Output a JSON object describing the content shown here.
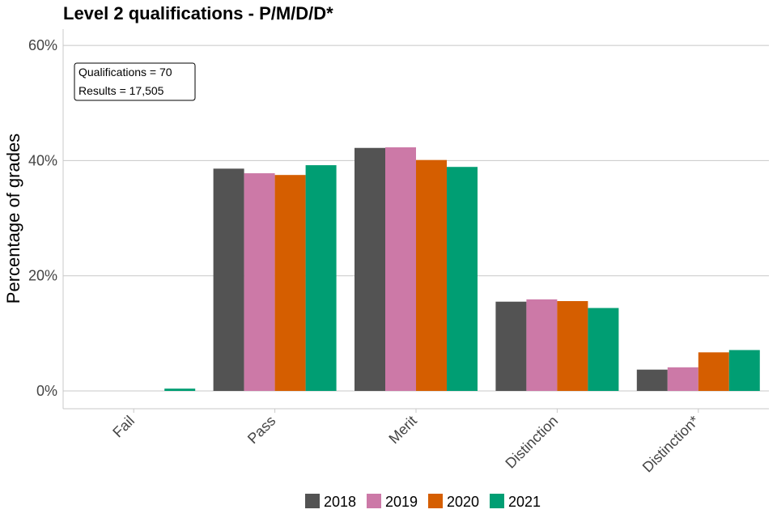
{
  "chart_data": {
    "type": "bar",
    "title": "Level 2 qualifications  - P/M/D/D*",
    "xlabel": "",
    "ylabel": "Percentage of grades",
    "categories": [
      "Fail",
      "Pass",
      "Merit",
      "Distinction",
      "Distinction*"
    ],
    "series": [
      {
        "name": "2018",
        "color": "#535353",
        "values": [
          0.0,
          38.6,
          42.2,
          15.5,
          3.7
        ]
      },
      {
        "name": "2019",
        "color": "#cc79a7",
        "values": [
          0.0,
          37.8,
          42.3,
          15.9,
          4.1
        ]
      },
      {
        "name": "2020",
        "color": "#d55e00",
        "values": [
          0.0,
          37.5,
          40.1,
          15.6,
          6.7
        ]
      },
      {
        "name": "2021",
        "color": "#009e73",
        "values": [
          0.4,
          39.2,
          38.9,
          14.4,
          7.1
        ]
      }
    ],
    "ylim": [
      -3,
      63
    ],
    "yticks": [
      0,
      20,
      40,
      60
    ],
    "ytick_labels": [
      "0%",
      "20%",
      "40%",
      "60%"
    ],
    "annotation": [
      "Qualifications = 70",
      "Results = 17,505"
    ],
    "legend_position": "bottom",
    "grid": true
  }
}
